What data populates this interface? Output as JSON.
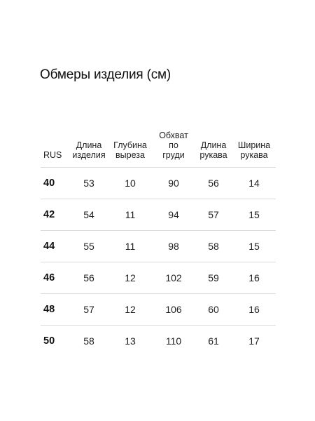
{
  "title": "Обмеры изделия (см)",
  "table": {
    "headers": [
      "RUS",
      "Длина\nизделия",
      "Глубина\nвыреза",
      "Обхват\nпо\nгруди",
      "Длина\nрукава",
      "Ширина\nрукава"
    ],
    "rows": [
      [
        "40",
        "53",
        "10",
        "90",
        "56",
        "14"
      ],
      [
        "42",
        "54",
        "11",
        "94",
        "57",
        "15"
      ],
      [
        "44",
        "55",
        "11",
        "98",
        "58",
        "15"
      ],
      [
        "46",
        "56",
        "12",
        "102",
        "59",
        "16"
      ],
      [
        "48",
        "57",
        "12",
        "106",
        "60",
        "16"
      ],
      [
        "50",
        "58",
        "13",
        "110",
        "61",
        "17"
      ]
    ]
  }
}
